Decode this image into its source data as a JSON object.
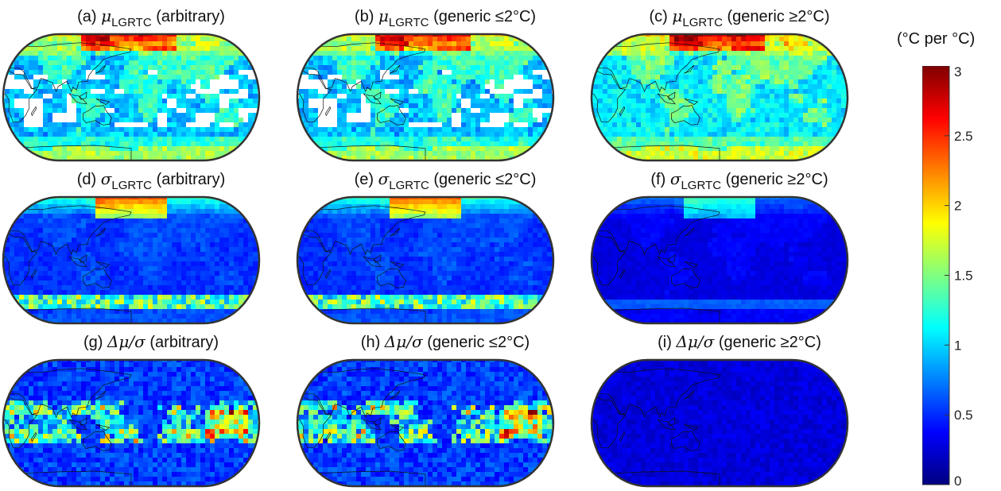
{
  "colorbar": {
    "unit_label": "(°C per °C)",
    "ticks": [
      "3",
      "2.5",
      "2",
      "1.5",
      "1",
      "0.5",
      "0"
    ],
    "min": 0,
    "max": 3,
    "colormap": [
      "#00007f",
      "#0000ff",
      "#0080ff",
      "#00ffff",
      "#80ff80",
      "#ffff00",
      "#ff8000",
      "#ff0000",
      "#7f0000"
    ]
  },
  "panels": [
    {
      "prefix": "(a)",
      "symbol": "μ",
      "sub": "LGRTC",
      "suffix": "(arbitrary)",
      "mask": true
    },
    {
      "prefix": "(b)",
      "symbol": "μ",
      "sub": "LGRTC",
      "suffix": "(generic ≤2°C)",
      "mask": true
    },
    {
      "prefix": "(c)",
      "symbol": "μ",
      "sub": "LGRTC",
      "suffix": "(generic ≥2°C)",
      "mask": false
    },
    {
      "prefix": "(d)",
      "symbol": "σ",
      "sub": "LGRTC",
      "suffix": "(arbitrary)",
      "mask": false
    },
    {
      "prefix": "(e)",
      "symbol": "σ",
      "sub": "LGRTC",
      "suffix": "(generic ≤2°C)",
      "mask": false
    },
    {
      "prefix": "(f)",
      "symbol": "σ",
      "sub": "LGRTC",
      "suffix": "(generic ≥2°C)",
      "mask": false
    },
    {
      "prefix": "(g)",
      "symbol": "Δμ/σ",
      "sub": "",
      "suffix": "(arbitrary)",
      "mask": false
    },
    {
      "prefix": "(h)",
      "symbol": "Δμ/σ",
      "sub": "",
      "suffix": "(generic ≤2°C)",
      "mask": false
    },
    {
      "prefix": "(i)",
      "symbol": "Δμ/σ",
      "sub": "",
      "suffix": "(generic ≥2°C)",
      "mask": false
    }
  ]
}
